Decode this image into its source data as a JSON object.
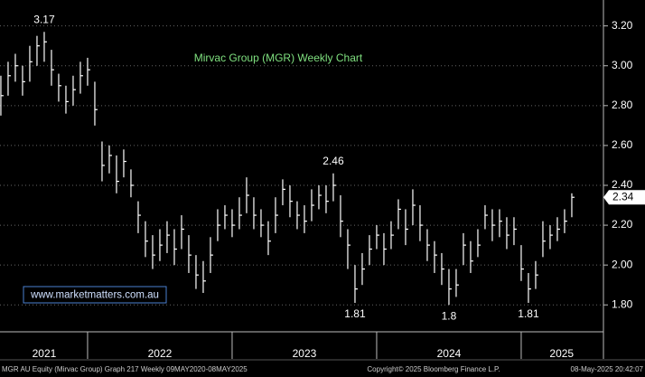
{
  "chart_data": {
    "type": "ohlc",
    "title": "Mirvac Group (MGR) Weekly Chart",
    "footer_left": "MGR AU Equity (Mirvac Group) Graph 217  Weekly 09MAY2020-08MAY2025",
    "footer_center": "Copyright© 2025 Bloomberg Finance L.P.",
    "footer_right": "08-May-2025 20:42:07",
    "watermark": "www.marketmatters.com.au",
    "color": "#ffffff",
    "title_color": "#7fe07f",
    "grid": true,
    "xlim": [
      2021.394,
      2025.569
    ],
    "ylim": [
      1.665,
      3.33
    ],
    "yticks": [
      {
        "value": 1.8,
        "label": "1.80"
      },
      {
        "value": 2.0,
        "label": "2.00"
      },
      {
        "value": 2.2,
        "label": "2.20"
      },
      {
        "value": 2.4,
        "label": "2.40"
      },
      {
        "value": 2.6,
        "label": "2.60"
      },
      {
        "value": 2.8,
        "label": "2.80"
      },
      {
        "value": 3.0,
        "label": "3.00"
      },
      {
        "value": 3.2,
        "label": "3.20"
      }
    ],
    "year_starts": [
      2022,
      2023,
      2024,
      2025
    ],
    "xticks": [
      {
        "value": 2021.7,
        "label": "2021"
      },
      {
        "value": 2022.5,
        "label": "2022"
      },
      {
        "value": 2023.5,
        "label": "2023"
      },
      {
        "value": 2024.5,
        "label": "2024"
      },
      {
        "value": 2025.28,
        "label": "2025"
      }
    ],
    "x": [
      2021.4,
      2021.45,
      2021.5,
      2021.55,
      2021.6,
      2021.65,
      2021.7,
      2021.75,
      2021.8,
      2021.85,
      2021.9,
      2021.95,
      2022.0,
      2022.05,
      2022.1,
      2022.15,
      2022.2,
      2022.25,
      2022.3,
      2022.35,
      2022.4,
      2022.45,
      2022.5,
      2022.55,
      2022.6,
      2022.65,
      2022.7,
      2022.75,
      2022.8,
      2022.85,
      2022.9,
      2022.95,
      2023.0,
      2023.05,
      2023.1,
      2023.15,
      2023.2,
      2023.25,
      2023.3,
      2023.35,
      2023.4,
      2023.45,
      2023.5,
      2023.55,
      2023.6,
      2023.65,
      2023.7,
      2023.75,
      2023.8,
      2023.85,
      2023.9,
      2023.95,
      2024.0,
      2024.05,
      2024.1,
      2024.15,
      2024.2,
      2024.25,
      2024.3,
      2024.35,
      2024.4,
      2024.45,
      2024.5,
      2024.55,
      2024.6,
      2024.65,
      2024.7,
      2024.75,
      2024.8,
      2024.85,
      2024.9,
      2024.95,
      2025.0,
      2025.05,
      2025.1,
      2025.15,
      2025.2,
      2025.25,
      2025.3,
      2025.35
    ],
    "high": [
      2.95,
      3.02,
      3.06,
      3.0,
      3.1,
      3.15,
      3.17,
      3.08,
      2.96,
      2.9,
      2.95,
      3.02,
      3.04,
      2.92,
      2.62,
      2.6,
      2.55,
      2.58,
      2.48,
      2.32,
      2.22,
      2.15,
      2.18,
      2.22,
      2.18,
      2.25,
      2.15,
      2.05,
      2.02,
      2.14,
      2.28,
      2.3,
      2.28,
      2.34,
      2.44,
      2.34,
      2.28,
      2.22,
      2.34,
      2.43,
      2.4,
      2.32,
      2.3,
      2.38,
      2.4,
      2.4,
      2.46,
      2.35,
      2.18,
      2.0,
      2.06,
      2.15,
      2.2,
      2.16,
      2.22,
      2.33,
      2.28,
      2.38,
      2.3,
      2.18,
      2.12,
      2.06,
      1.98,
      1.98,
      2.16,
      2.12,
      2.18,
      2.3,
      2.28,
      2.28,
      2.24,
      2.24,
      2.1,
      1.96,
      2.02,
      2.22,
      2.2,
      2.24,
      2.28,
      2.36
    ],
    "low": [
      2.75,
      2.85,
      2.92,
      2.85,
      2.92,
      3.0,
      3.02,
      2.9,
      2.82,
      2.76,
      2.8,
      2.86,
      2.9,
      2.7,
      2.42,
      2.46,
      2.36,
      2.44,
      2.34,
      2.16,
      2.04,
      1.98,
      2.02,
      2.06,
      2.0,
      2.08,
      1.96,
      1.88,
      1.86,
      1.96,
      2.12,
      2.18,
      2.14,
      2.18,
      2.26,
      2.18,
      2.14,
      2.05,
      2.16,
      2.3,
      2.24,
      2.18,
      2.16,
      2.22,
      2.28,
      2.26,
      2.32,
      2.14,
      1.98,
      1.81,
      1.9,
      2.0,
      2.08,
      2.0,
      2.08,
      2.18,
      2.1,
      2.2,
      2.12,
      2.02,
      1.96,
      1.9,
      1.8,
      1.84,
      2.0,
      1.96,
      2.04,
      2.18,
      2.12,
      2.14,
      2.08,
      2.1,
      1.92,
      1.81,
      1.88,
      2.04,
      2.08,
      2.12,
      2.16,
      2.24
    ],
    "close": [
      2.85,
      2.95,
      3.0,
      2.92,
      3.02,
      3.1,
      3.12,
      2.98,
      2.9,
      2.82,
      2.88,
      2.95,
      2.98,
      2.78,
      2.5,
      2.55,
      2.42,
      2.52,
      2.4,
      2.25,
      2.12,
      2.05,
      2.1,
      2.15,
      2.08,
      2.18,
      2.05,
      1.95,
      1.92,
      2.05,
      2.2,
      2.25,
      2.2,
      2.25,
      2.35,
      2.25,
      2.2,
      2.12,
      2.25,
      2.38,
      2.32,
      2.25,
      2.22,
      2.3,
      2.35,
      2.32,
      2.4,
      2.22,
      2.1,
      1.88,
      1.98,
      2.08,
      2.15,
      2.08,
      2.15,
      2.28,
      2.18,
      2.3,
      2.2,
      2.1,
      2.05,
      1.98,
      1.88,
      1.9,
      2.1,
      2.02,
      2.1,
      2.25,
      2.2,
      2.22,
      2.15,
      2.18,
      1.98,
      1.88,
      1.95,
      2.12,
      2.15,
      2.18,
      2.22,
      2.34
    ],
    "annotations": [
      {
        "x": 2021.7,
        "y": 3.17,
        "position": "above"
      },
      {
        "x": 2023.7,
        "y": 2.46,
        "position": "above"
      },
      {
        "x": 2023.85,
        "y": 1.81,
        "position": "below"
      },
      {
        "x": 2024.5,
        "y": 1.8,
        "position": "below"
      },
      {
        "x": 2025.05,
        "y": 1.81,
        "position": "below"
      }
    ],
    "last_price": {
      "value": 2.34,
      "label": "2.34"
    }
  }
}
